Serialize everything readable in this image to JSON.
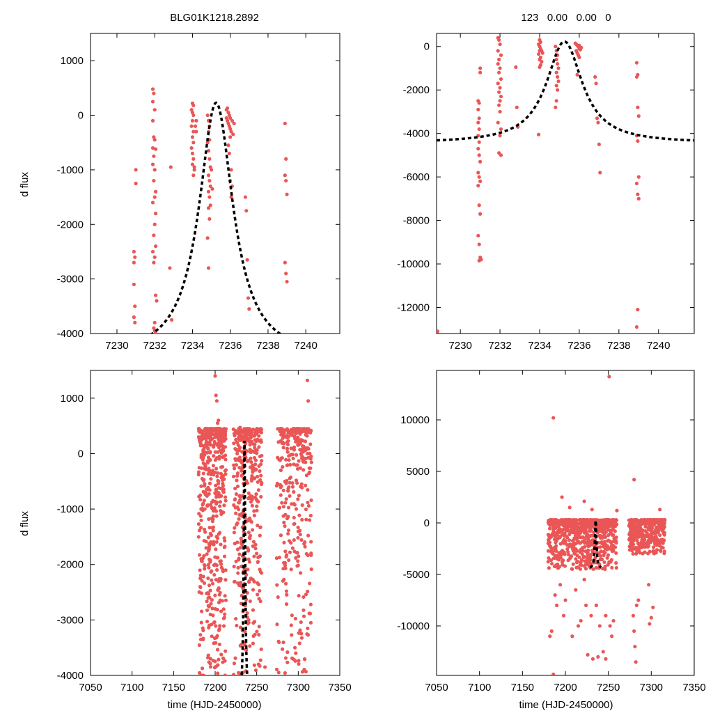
{
  "titles": {
    "left": "BLG01K1218.2892",
    "right": "123   0.00   0.00   0"
  },
  "labels": {
    "ylabel": "d flux",
    "xlabel": "time (HJD-2450000)"
  },
  "colors": {
    "points": "#ea5656",
    "model": "#000000"
  },
  "chart_data": [
    {
      "type": "scatter",
      "panel": "top-left",
      "xlim": [
        7228.6,
        7241.8
      ],
      "ylim": [
        -4000,
        1500
      ],
      "xticks": [
        7230,
        7232,
        7234,
        7236,
        7238,
        7240
      ],
      "yticks": [
        -4000,
        -3000,
        -2000,
        -1000,
        0,
        1000
      ],
      "model": {
        "peak_time": 7235.25,
        "peak_flux": 230,
        "base_flux": -4450,
        "tau": 1.1,
        "t_min": 7228.6,
        "t_max": 7241.7
      },
      "points": [
        [
          7230.9,
          -2500
        ],
        [
          7230.9,
          -2700
        ],
        [
          7230.95,
          -2600
        ],
        [
          7230.9,
          -3100
        ],
        [
          7230.95,
          -3500
        ],
        [
          7230.9,
          -3700
        ],
        [
          7231.0,
          -1250
        ],
        [
          7231.0,
          -1000
        ],
        [
          7230.95,
          -3800
        ],
        [
          7231.9,
          480
        ],
        [
          7231.95,
          400
        ],
        [
          7231.9,
          250
        ],
        [
          7232.0,
          100
        ],
        [
          7231.9,
          -100
        ],
        [
          7231.95,
          -400
        ],
        [
          7232.0,
          -450
        ],
        [
          7231.9,
          -600
        ],
        [
          7232.05,
          -620
        ],
        [
          7231.95,
          -750
        ],
        [
          7231.9,
          -900
        ],
        [
          7232.0,
          -1000
        ],
        [
          7231.95,
          -1200
        ],
        [
          7232.05,
          -1400
        ],
        [
          7232.0,
          -1500
        ],
        [
          7231.9,
          -1600
        ],
        [
          7232.05,
          -1800
        ],
        [
          7232.0,
          -2000
        ],
        [
          7231.95,
          -2200
        ],
        [
          7232.05,
          -2400
        ],
        [
          7231.9,
          -2500
        ],
        [
          7232.0,
          -2600
        ],
        [
          7231.95,
          -2700
        ],
        [
          7232.05,
          -3300
        ],
        [
          7232.1,
          -3400
        ],
        [
          7232.0,
          -3800
        ],
        [
          7231.95,
          -3900
        ],
        [
          7232.05,
          -4000
        ],
        [
          7232.0,
          -3950
        ],
        [
          7232.8,
          -2800
        ],
        [
          7232.85,
          -950
        ],
        [
          7232.9,
          -3750
        ],
        [
          7234.0,
          220
        ],
        [
          7234.05,
          180
        ],
        [
          7233.95,
          100
        ],
        [
          7234.0,
          50
        ],
        [
          7234.05,
          0
        ],
        [
          7234.0,
          -100
        ],
        [
          7233.95,
          -200
        ],
        [
          7234.05,
          -300
        ],
        [
          7234.0,
          -400
        ],
        [
          7234.05,
          -500
        ],
        [
          7233.95,
          -600
        ],
        [
          7234.0,
          -700
        ],
        [
          7234.05,
          -800
        ],
        [
          7234.0,
          -900
        ],
        [
          7234.1,
          -950
        ],
        [
          7234.1,
          -1000
        ],
        [
          7234.05,
          -1100
        ],
        [
          7234.15,
          -200
        ],
        [
          7234.2,
          -300
        ],
        [
          7234.2,
          -100
        ],
        [
          7234.8,
          0
        ],
        [
          7234.85,
          -100
        ],
        [
          7234.9,
          -200
        ],
        [
          7234.85,
          -300
        ],
        [
          7234.9,
          -450
        ],
        [
          7234.8,
          -500
        ],
        [
          7234.85,
          -650
        ],
        [
          7234.9,
          -800
        ],
        [
          7234.95,
          -950
        ],
        [
          7234.85,
          -1100
        ],
        [
          7234.9,
          -1200
        ],
        [
          7234.95,
          -1300
        ],
        [
          7234.85,
          -1400
        ],
        [
          7234.9,
          -1500
        ],
        [
          7234.95,
          -1650
        ],
        [
          7234.85,
          -1700
        ],
        [
          7234.9,
          -1900
        ],
        [
          7234.8,
          -2250
        ],
        [
          7234.85,
          -2800
        ],
        [
          7235.0,
          -1000
        ],
        [
          7235.05,
          -1350
        ],
        [
          7235.8,
          100
        ],
        [
          7235.85,
          130
        ],
        [
          7235.9,
          50
        ],
        [
          7235.95,
          0
        ],
        [
          7236.0,
          -50
        ],
        [
          7235.85,
          -100
        ],
        [
          7235.9,
          -150
        ],
        [
          7235.95,
          -200
        ],
        [
          7236.0,
          -250
        ],
        [
          7236.05,
          -300
        ],
        [
          7236.0,
          -400
        ],
        [
          7235.9,
          -550
        ],
        [
          7235.95,
          -700
        ],
        [
          7236.05,
          -1000
        ],
        [
          7236.0,
          -1200
        ],
        [
          7236.1,
          -1300
        ],
        [
          7236.05,
          -1500
        ],
        [
          7236.15,
          -350
        ],
        [
          7236.2,
          -150
        ],
        [
          7236.1,
          -100
        ],
        [
          7235.8,
          -50
        ],
        [
          7236.8,
          -1500
        ],
        [
          7236.85,
          -1750
        ],
        [
          7236.9,
          -2650
        ],
        [
          7236.95,
          -3350
        ],
        [
          7237.0,
          -3550
        ],
        [
          7238.9,
          -150
        ],
        [
          7238.95,
          -800
        ],
        [
          7238.9,
          -1100
        ],
        [
          7238.95,
          -1200
        ],
        [
          7239.0,
          -1450
        ],
        [
          7238.9,
          -2700
        ],
        [
          7238.95,
          -2900
        ],
        [
          7239.0,
          -3050
        ]
      ]
    },
    {
      "type": "scatter",
      "panel": "top-right",
      "xlim": [
        7228.8,
        7241.8
      ],
      "ylim": [
        -13200,
        600
      ],
      "xticks": [
        7230,
        7232,
        7234,
        7236,
        7238,
        7240
      ],
      "yticks": [
        -12000,
        -10000,
        -8000,
        -6000,
        -4000,
        -2000,
        0
      ],
      "model": {
        "peak_time": 7235.25,
        "peak_flux": 230,
        "base_flux": -4450,
        "tau": 1.1,
        "t_min": 7228.8,
        "t_max": 7241.8
      },
      "points": [
        [
          7228.85,
          -13100
        ],
        [
          7230.9,
          -2500
        ],
        [
          7230.95,
          -2600
        ],
        [
          7230.9,
          -2900
        ],
        [
          7230.95,
          -3300
        ],
        [
          7230.9,
          -3500
        ],
        [
          7230.95,
          -3800
        ],
        [
          7231.0,
          -1000
        ],
        [
          7231.0,
          -1200
        ],
        [
          7230.9,
          -4100
        ],
        [
          7230.95,
          -4400
        ],
        [
          7230.9,
          -4700
        ],
        [
          7230.95,
          -5000
        ],
        [
          7231.0,
          -5300
        ],
        [
          7230.9,
          -5800
        ],
        [
          7230.95,
          -6000
        ],
        [
          7231.0,
          -6200
        ],
        [
          7230.9,
          -6400
        ],
        [
          7230.95,
          -7300
        ],
        [
          7231.0,
          -7700
        ],
        [
          7230.9,
          -8700
        ],
        [
          7230.95,
          -9100
        ],
        [
          7231.0,
          -9700
        ],
        [
          7231.05,
          -9800
        ],
        [
          7230.95,
          -9850
        ],
        [
          7231.9,
          400
        ],
        [
          7231.95,
          300
        ],
        [
          7232.0,
          100
        ],
        [
          7231.9,
          -200
        ],
        [
          7232.05,
          -400
        ],
        [
          7231.95,
          -600
        ],
        [
          7231.9,
          -800
        ],
        [
          7232.0,
          -1000
        ],
        [
          7231.95,
          -1200
        ],
        [
          7232.05,
          -1500
        ],
        [
          7231.9,
          -1700
        ],
        [
          7232.0,
          -1900
        ],
        [
          7231.95,
          -2100
        ],
        [
          7232.05,
          -2300
        ],
        [
          7232.0,
          -2500
        ],
        [
          7231.95,
          -2700
        ],
        [
          7232.0,
          -3000
        ],
        [
          7231.9,
          -3500
        ],
        [
          7232.05,
          -3800
        ],
        [
          7232.0,
          -4100
        ],
        [
          7231.95,
          -4900
        ],
        [
          7232.05,
          -5000
        ],
        [
          7232.8,
          -950
        ],
        [
          7232.85,
          -2800
        ],
        [
          7232.9,
          -3700
        ],
        [
          7234.0,
          300
        ],
        [
          7234.05,
          200
        ],
        [
          7233.95,
          100
        ],
        [
          7234.0,
          0
        ],
        [
          7234.05,
          -100
        ],
        [
          7234.0,
          -200
        ],
        [
          7233.95,
          -350
        ],
        [
          7234.05,
          -500
        ],
        [
          7234.0,
          -600
        ],
        [
          7234.1,
          -700
        ],
        [
          7234.05,
          -850
        ],
        [
          7234.0,
          -950
        ],
        [
          7234.1,
          -200
        ],
        [
          7234.15,
          -300
        ],
        [
          7233.95,
          -4050
        ],
        [
          7234.8,
          0
        ],
        [
          7234.85,
          -200
        ],
        [
          7234.9,
          -400
        ],
        [
          7234.85,
          -600
        ],
        [
          7234.9,
          -800
        ],
        [
          7234.95,
          -1000
        ],
        [
          7234.85,
          -1200
        ],
        [
          7234.9,
          -1400
        ],
        [
          7234.95,
          -1600
        ],
        [
          7234.85,
          -1800
        ],
        [
          7234.9,
          -2000
        ],
        [
          7234.8,
          -2800
        ],
        [
          7234.85,
          -2500
        ],
        [
          7235.8,
          150
        ],
        [
          7235.85,
          100
        ],
        [
          7235.9,
          50
        ],
        [
          7235.95,
          0
        ],
        [
          7236.0,
          -100
        ],
        [
          7235.85,
          -200
        ],
        [
          7235.9,
          -300
        ],
        [
          7235.95,
          -400
        ],
        [
          7236.0,
          -500
        ],
        [
          7236.05,
          -150
        ],
        [
          7236.1,
          -50
        ],
        [
          7236.0,
          50
        ],
        [
          7235.9,
          -1300
        ],
        [
          7236.8,
          -1400
        ],
        [
          7236.85,
          -1700
        ],
        [
          7236.9,
          -3300
        ],
        [
          7236.95,
          -3500
        ],
        [
          7237.0,
          -4500
        ],
        [
          7237.05,
          -5800
        ],
        [
          7238.9,
          -750
        ],
        [
          7238.95,
          -1300
        ],
        [
          7238.9,
          -1400
        ],
        [
          7238.95,
          -2800
        ],
        [
          7239.0,
          -3200
        ],
        [
          7238.9,
          -4100
        ],
        [
          7238.95,
          -4350
        ],
        [
          7239.0,
          -6000
        ],
        [
          7238.9,
          -6300
        ],
        [
          7238.95,
          -6800
        ],
        [
          7239.0,
          -7000
        ],
        [
          7238.95,
          -12100
        ],
        [
          7238.9,
          -12900
        ]
      ]
    },
    {
      "type": "scatter",
      "panel": "bottom-left",
      "xlim": [
        7050,
        7350
      ],
      "ylim": [
        -4000,
        1500
      ],
      "xticks": [
        7050,
        7100,
        7150,
        7200,
        7250,
        7300,
        7350
      ],
      "yticks": [
        -4000,
        -3000,
        -2000,
        -1000,
        0,
        1000
      ],
      "model": {
        "peak_time": 7235.25,
        "peak_flux": 230,
        "base_flux": -4450,
        "tau": 1.1,
        "t_min": 7228.6,
        "t_max": 7241.7
      },
      "seasons": [
        {
          "x_from": 7180,
          "x_to": 7213,
          "y_from": -4000,
          "y_to": 450,
          "count": 520
        },
        {
          "x_from": 7222,
          "x_to": 7256,
          "y_from": -4000,
          "y_to": 450,
          "count": 380
        },
        {
          "x_from": 7274,
          "x_to": 7316,
          "y_from": -4000,
          "y_to": 450,
          "count": 320
        }
      ],
      "points": [
        [
          7200,
          1400
        ],
        [
          7201,
          1050
        ],
        [
          7202,
          950
        ],
        [
          7203,
          550
        ],
        [
          7204,
          600
        ],
        [
          7230,
          470
        ],
        [
          7311,
          1320
        ],
        [
          7312,
          950
        ],
        [
          7186,
          -4000
        ],
        [
          7212,
          -4000
        ],
        [
          7297,
          -3600
        ],
        [
          7296,
          -3500
        ],
        [
          7260,
          -3850
        ]
      ]
    },
    {
      "type": "scatter",
      "panel": "bottom-right",
      "xlim": [
        7050,
        7350
      ],
      "ylim": [
        -14800,
        14800
      ],
      "xticks": [
        7050,
        7100,
        7150,
        7200,
        7250,
        7300,
        7350
      ],
      "yticks": [
        -10000,
        -5000,
        0,
        5000,
        10000
      ],
      "model": {
        "peak_time": 7235.25,
        "peak_flux": 230,
        "base_flux": -4450,
        "tau": 1.1,
        "t_min": 7228.6,
        "t_max": 7241.7
      },
      "seasons": [
        {
          "x_from": 7180,
          "x_to": 7260,
          "y_from": -4500,
          "y_to": 300,
          "count": 700
        },
        {
          "x_from": 7274,
          "x_to": 7316,
          "y_from": -3000,
          "y_to": 300,
          "count": 350
        }
      ],
      "points": [
        [
          7186,
          10200
        ],
        [
          7251,
          14200
        ],
        [
          7280,
          4200
        ],
        [
          7196,
          2500
        ],
        [
          7222,
          2100
        ],
        [
          7205,
          1500
        ],
        [
          7231,
          1300
        ],
        [
          7260,
          1200
        ],
        [
          7310,
          1300
        ],
        [
          7186,
          -14700
        ],
        [
          7182,
          -11000
        ],
        [
          7184,
          -10500
        ],
        [
          7190,
          -8000
        ],
        [
          7198,
          -9000
        ],
        [
          7200,
          -7500
        ],
        [
          7208,
          -11000
        ],
        [
          7215,
          -10000
        ],
        [
          7218,
          -9500
        ],
        [
          7226,
          -12800
        ],
        [
          7232,
          -13200
        ],
        [
          7238,
          -13000
        ],
        [
          7244,
          -12500
        ],
        [
          7247,
          -13200
        ],
        [
          7254,
          -11000
        ],
        [
          7252,
          -10000
        ],
        [
          7247,
          -9000
        ],
        [
          7240,
          -10000
        ],
        [
          7236,
          -8000
        ],
        [
          7224,
          -8000
        ],
        [
          7230,
          -9000
        ],
        [
          7256,
          -9500
        ],
        [
          7282,
          -13500
        ],
        [
          7281,
          -12000
        ],
        [
          7280,
          -10500
        ],
        [
          7279,
          -9000
        ],
        [
          7283,
          -8000
        ],
        [
          7285,
          -7500
        ],
        [
          7298,
          -9800
        ],
        [
          7300,
          -9200
        ],
        [
          7302,
          -8200
        ],
        [
          7297,
          -6000
        ],
        [
          7212,
          -6500
        ],
        [
          7222,
          -5500
        ],
        [
          7194,
          -6000
        ],
        [
          7188,
          -7000
        ]
      ]
    }
  ]
}
